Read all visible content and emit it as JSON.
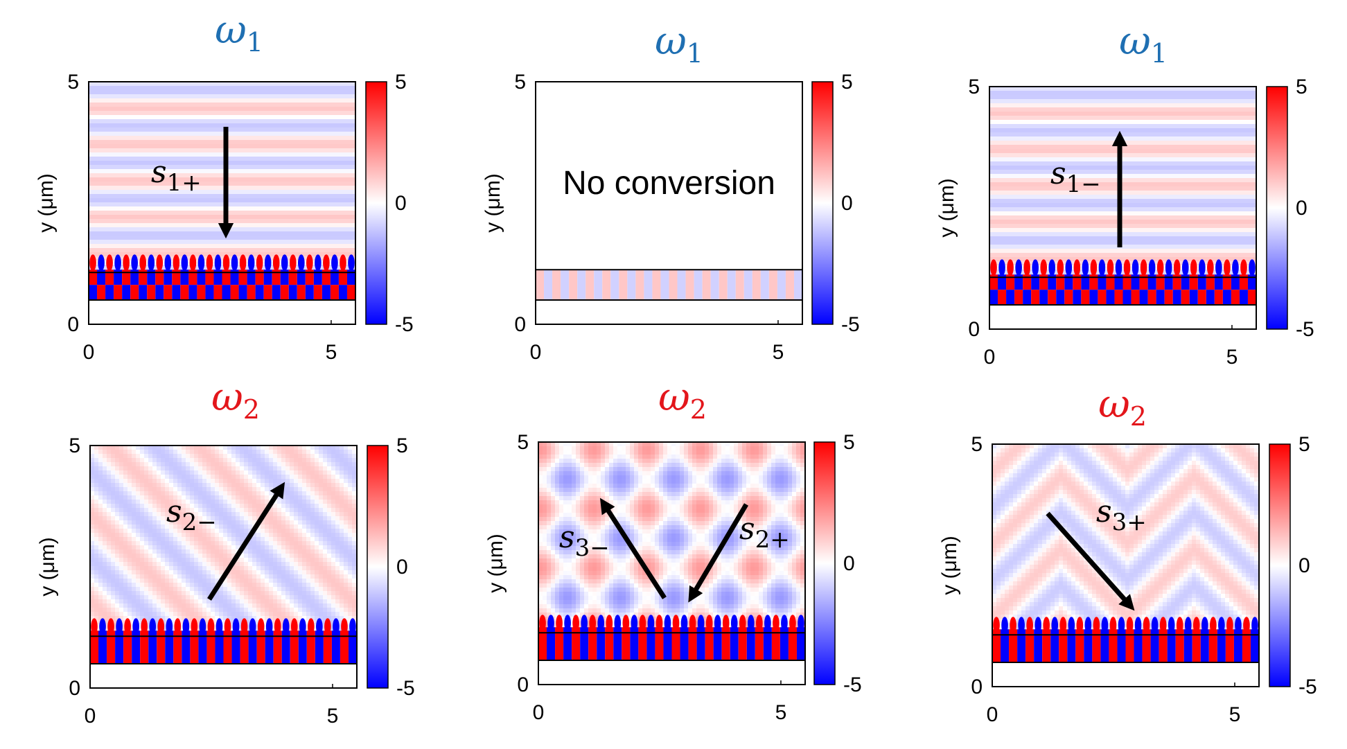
{
  "colors": {
    "omega1": "#1f6fb2",
    "omega2": "#e3161b",
    "field_pos": "#ff0000",
    "field_neg": "#0000ff",
    "arrow": "#000000"
  },
  "axes": {
    "ylabel": "y (μm)",
    "x_ticks": [
      "0",
      "5"
    ],
    "y_ticks": [
      "0",
      "5"
    ],
    "cbar_ticks": [
      "5",
      "0",
      "-5"
    ]
  },
  "panels": [
    {
      "omega_sym": "ω",
      "omega_sub": "1",
      "omega_color": "omega1",
      "field": "horizontal",
      "amp": 0.22,
      "grating": "checker",
      "grating_strength": 1.0,
      "label_main": "s",
      "label_sub": "1+",
      "arrow": "down",
      "text": ""
    },
    {
      "omega_sym": "ω",
      "omega_sub": "1",
      "omega_color": "omega1",
      "field": "none",
      "amp": 0.0,
      "grating": "faint",
      "grating_strength": 0.25,
      "label_main": "",
      "label_sub": "",
      "arrow": "none",
      "text": "No conversion"
    },
    {
      "omega_sym": "ω",
      "omega_sub": "1",
      "omega_color": "omega1",
      "field": "horizontal",
      "amp": 0.22,
      "grating": "checker",
      "grating_strength": 1.0,
      "label_main": "s",
      "label_sub": "1−",
      "arrow": "up",
      "text": ""
    },
    {
      "omega_sym": "ω",
      "omega_sub": "2",
      "omega_color": "omega2",
      "field": "diag-up-right",
      "amp": 0.22,
      "grating": "bars",
      "grating_strength": 1.0,
      "label_main": "s",
      "label_sub": "2−",
      "arrow": "up-right",
      "text": ""
    },
    {
      "omega_sym": "ω",
      "omega_sub": "2",
      "omega_color": "omega2",
      "field": "cross",
      "amp": 0.25,
      "grating": "bars",
      "grating_strength": 1.0,
      "label_main": "s",
      "label_sub": "3−",
      "label2_main": "s",
      "label2_sub": "2+",
      "arrow": "double",
      "text": ""
    },
    {
      "omega_sym": "ω",
      "omega_sub": "2",
      "omega_color": "omega2",
      "field": "chevron",
      "amp": 0.2,
      "grating": "bars",
      "grating_strength": 1.0,
      "label_main": "s",
      "label_sub": "3+",
      "arrow": "down-right",
      "text": ""
    }
  ]
}
